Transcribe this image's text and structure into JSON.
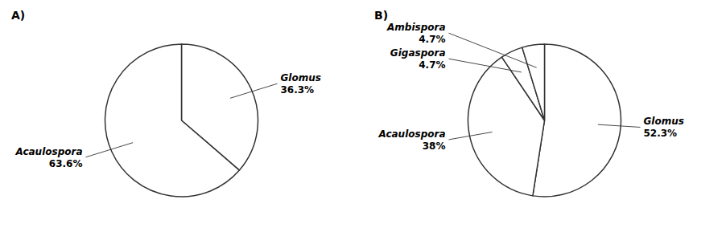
{
  "chart_data": [
    {
      "type": "pie",
      "title": "A)",
      "categories": [
        "Glomus",
        "Acaulospora"
      ],
      "values": [
        36.3,
        63.6
      ],
      "value_labels": [
        "36.3%",
        "63.6%"
      ],
      "colors": [
        "#ffffff",
        "#ffffff"
      ],
      "data_labels": true
    },
    {
      "type": "pie",
      "title": "B)",
      "categories": [
        "Glomus",
        "Acaulospora",
        "Gigaspora",
        "Ambispora"
      ],
      "values": [
        52.3,
        38,
        4.7,
        4.7
      ],
      "value_labels": [
        "52.3%",
        "38%",
        "4.7%",
        "4.7%"
      ],
      "colors": [
        "#ffffff",
        "#ffffff",
        "#ffffff",
        "#ffffff"
      ],
      "data_labels": true
    }
  ]
}
